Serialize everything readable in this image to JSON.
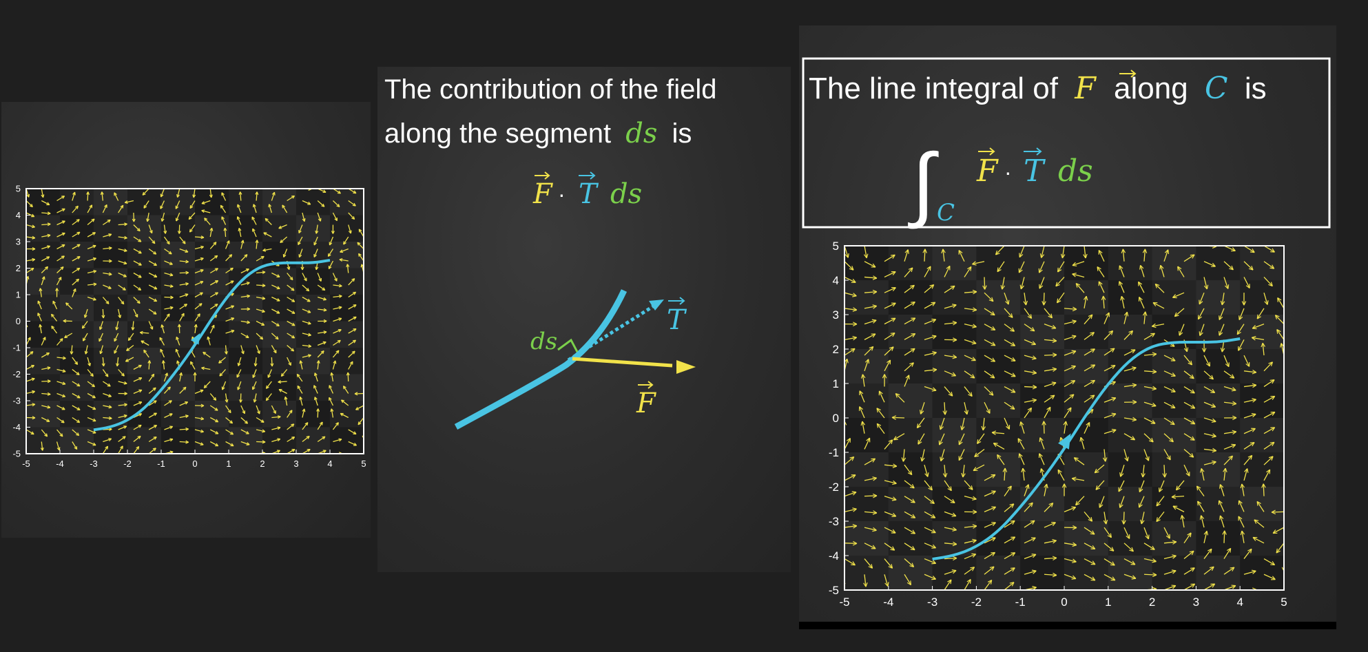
{
  "colors": {
    "field_yellow": "#f1e24a",
    "curve_cyan": "#49c4e3",
    "ds_green": "#7bd04b",
    "text_white": "#ffffff",
    "background": "#1f1f1f"
  },
  "left_panel": {},
  "middle_panel": {
    "heading_line1": "The contribution of the field",
    "heading_line2_prefix": "along the segment",
    "heading_line2_ds": "ds",
    "heading_line2_suffix": "is",
    "formula_F": "F",
    "formula_dot": "·",
    "formula_T": "T",
    "formula_ds": "ds",
    "label_ds": "ds",
    "label_T": "T",
    "label_F": "F",
    "vector_arrow": "⃗"
  },
  "right_panel": {
    "box_prefix": "The line integral of",
    "box_F": "F",
    "box_along": "along",
    "box_C": "C",
    "box_is": "is",
    "integral_sign": "∫",
    "integral_sub": "C",
    "integral_F": "F",
    "integral_dot": "·",
    "integral_T": "T",
    "integral_ds": "ds"
  },
  "chart_data": [
    {
      "type": "quiver",
      "xlim": [
        -5,
        5
      ],
      "ylim": [
        -5,
        5
      ],
      "x_ticks": [
        "-5",
        "-4",
        "-3",
        "-2",
        "-1",
        "0",
        "1",
        "2",
        "3",
        "4",
        "5"
      ],
      "y_ticks": [
        "5",
        "4",
        "3",
        "2",
        "1",
        "0",
        "-1",
        "-2",
        "-3",
        "-4",
        "-5"
      ],
      "curve": {
        "x": [
          -3,
          -2.5,
          -2,
          -1.5,
          -1,
          -0.5,
          0,
          0.5,
          1,
          1.5,
          2,
          2.5,
          3,
          3.5,
          4
        ],
        "y": [
          -4.1,
          -4.0,
          -3.75,
          -3.3,
          -2.6,
          -1.8,
          -0.9,
          0.1,
          1.0,
          1.7,
          2.1,
          2.2,
          2.2,
          2.2,
          2.3
        ]
      }
    },
    {
      "type": "quiver",
      "xlim": [
        -5,
        5
      ],
      "ylim": [
        -5,
        5
      ],
      "x_ticks": [
        "-5",
        "-4",
        "-3",
        "-2",
        "-1",
        "0",
        "1",
        "2",
        "3",
        "4",
        "5"
      ],
      "y_ticks": [
        "5",
        "4",
        "3",
        "2",
        "1",
        "0",
        "-1",
        "-2",
        "-3",
        "-4",
        "-5"
      ],
      "curve": {
        "x": [
          -3,
          -2.5,
          -2,
          -1.5,
          -1,
          -0.5,
          0,
          0.5,
          1,
          1.5,
          2,
          2.5,
          3,
          3.5,
          4
        ],
        "y": [
          -4.1,
          -4.0,
          -3.75,
          -3.3,
          -2.6,
          -1.8,
          -0.9,
          0.1,
          1.0,
          1.7,
          2.1,
          2.2,
          2.2,
          2.2,
          2.3
        ]
      }
    }
  ]
}
